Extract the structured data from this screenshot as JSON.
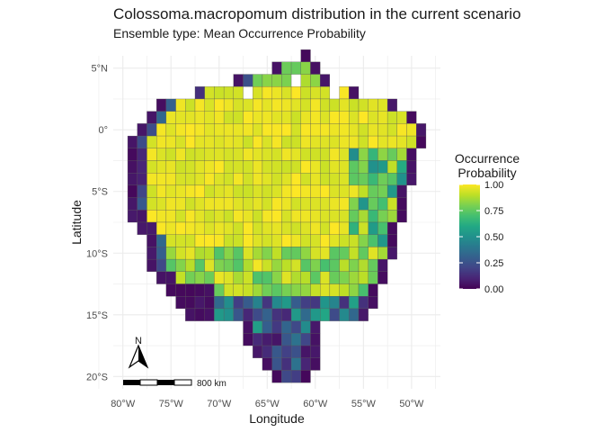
{
  "title": "Colossoma.macropomum distribution in the current scenario",
  "subtitle": "Ensemble type: Mean Occurrence Probability",
  "chart_data": {
    "type": "heatmap",
    "xlabel": "Longitude",
    "ylabel": "Latitude",
    "xlim": [
      -81,
      -47
    ],
    "ylim": [
      -21,
      6
    ],
    "x_ticks": [
      {
        "value": -80,
        "label": "80°W"
      },
      {
        "value": -75,
        "label": "75°W"
      },
      {
        "value": -70,
        "label": "70°W"
      },
      {
        "value": -65,
        "label": "65°W"
      },
      {
        "value": -60,
        "label": "60°W"
      },
      {
        "value": -55,
        "label": "55°W"
      },
      {
        "value": -50,
        "label": "50°W"
      }
    ],
    "y_ticks": [
      {
        "value": 5,
        "label": "5°N"
      },
      {
        "value": 0,
        "label": "0°"
      },
      {
        "value": -5,
        "label": "5°S"
      },
      {
        "value": -10,
        "label": "10°S"
      },
      {
        "value": -15,
        "label": "15°S"
      },
      {
        "value": -20,
        "label": "20°S"
      }
    ],
    "grid": true,
    "cell_size_deg": 1,
    "legend": {
      "title_lines": [
        "Occurrence",
        "Probability"
      ],
      "range": [
        0,
        1
      ],
      "ticks": [
        "0.00",
        "0.25",
        "0.50",
        "0.75",
        "1.00"
      ],
      "colormap": "viridis",
      "placement": "right"
    },
    "row_spans": [
      {
        "lat": 6,
        "x0": -61,
        "x1": -61
      },
      {
        "lat": 5,
        "x0": -64,
        "x1": -60
      },
      {
        "lat": 4,
        "x0": -68,
        "x1": -59
      },
      {
        "lat": 3,
        "x0": -73,
        "x1": -56
      },
      {
        "lat": 2,
        "x0": -76,
        "x1": -52
      },
      {
        "lat": 1,
        "x0": -77,
        "x1": -50
      },
      {
        "lat": 0,
        "x0": -78,
        "x1": -49
      },
      {
        "lat": -1,
        "x0": -79,
        "x1": -49
      },
      {
        "lat": -2,
        "x0": -79,
        "x1": -50
      },
      {
        "lat": -3,
        "x0": -79,
        "x1": -50
      },
      {
        "lat": -4,
        "x0": -79,
        "x1": -50
      },
      {
        "lat": -5,
        "x0": -79,
        "x1": -51
      },
      {
        "lat": -6,
        "x0": -79,
        "x1": -51
      },
      {
        "lat": -7,
        "x0": -79,
        "x1": -51
      },
      {
        "lat": -8,
        "x0": -78,
        "x1": -52
      },
      {
        "lat": -9,
        "x0": -77,
        "x1": -52
      },
      {
        "lat": -10,
        "x0": -77,
        "x1": -52
      },
      {
        "lat": -11,
        "x0": -77,
        "x1": -53
      },
      {
        "lat": -12,
        "x0": -76,
        "x1": -53
      },
      {
        "lat": -13,
        "x0": -75,
        "x1": -54
      },
      {
        "lat": -14,
        "x0": -74,
        "x1": -54
      },
      {
        "lat": -15,
        "x0": -73,
        "x1": -55
      },
      {
        "lat": -16,
        "x0": -67,
        "x1": -60
      },
      {
        "lat": -17,
        "x0": -67,
        "x1": -60
      },
      {
        "lat": -18,
        "x0": -66,
        "x1": -60
      },
      {
        "lat": -19,
        "x0": -65,
        "x1": -60
      },
      {
        "lat": -20,
        "x0": -64,
        "x1": -61
      }
    ],
    "missing_cells": [
      [
        -71,
        4
      ],
      [
        -70,
        4
      ],
      [
        -69,
        4
      ],
      [
        -62,
        4
      ],
      [
        -73,
        3
      ],
      [
        -67,
        3
      ],
      [
        -58,
        3
      ],
      [
        -70,
        5
      ],
      [
        -69,
        5
      ],
      [
        -68,
        5
      ],
      [
        -66,
        5
      ]
    ]
  },
  "scale_bar": {
    "label": "800 km"
  },
  "north_arrow": {
    "label": "N"
  }
}
